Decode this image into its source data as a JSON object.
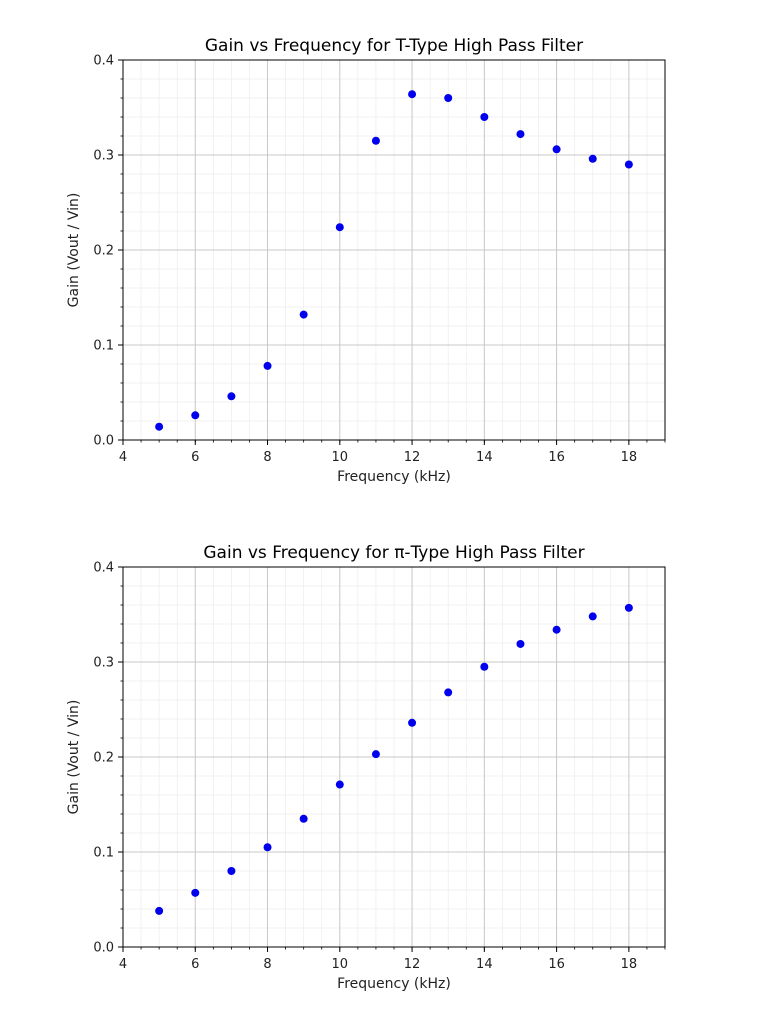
{
  "chart_data": [
    {
      "type": "scatter",
      "title": "Gain vs Frequency for T-Type High Pass Filter",
      "xlabel": "Frequency (kHz)",
      "ylabel": "Gain (Vout / Vin)",
      "xlim": [
        4,
        19
      ],
      "ylim": [
        0,
        0.4
      ],
      "xticks": [
        4,
        6,
        8,
        10,
        12,
        14,
        16,
        18
      ],
      "xtick_labels": [
        "4",
        "6",
        "8",
        "10",
        "12",
        "14",
        "16",
        "18"
      ],
      "yticks": [
        0,
        0.1,
        0.2,
        0.3,
        0.4
      ],
      "ytick_labels": [
        "0.0",
        "0.1",
        "0.2",
        "0.3",
        "0.4"
      ],
      "grid": true,
      "minor_grid": true,
      "marker_color": "#0000ee",
      "x": [
        5,
        6,
        7,
        8,
        9,
        10,
        11,
        12,
        13,
        14,
        15,
        16,
        17,
        18
      ],
      "y": [
        0.014,
        0.026,
        0.046,
        0.078,
        0.132,
        0.224,
        0.315,
        0.364,
        0.36,
        0.34,
        0.322,
        0.306,
        0.296,
        0.29
      ]
    },
    {
      "type": "scatter",
      "title": "Gain vs Frequency for π-Type High Pass Filter",
      "xlabel": "Frequency (kHz)",
      "ylabel": "Gain (Vout / Vin)",
      "xlim": [
        4,
        19
      ],
      "ylim": [
        0,
        0.4
      ],
      "xticks": [
        4,
        6,
        8,
        10,
        12,
        14,
        16,
        18
      ],
      "xtick_labels": [
        "4",
        "6",
        "8",
        "10",
        "12",
        "14",
        "16",
        "18"
      ],
      "yticks": [
        0,
        0.1,
        0.2,
        0.3,
        0.4
      ],
      "ytick_labels": [
        "0.0",
        "0.1",
        "0.2",
        "0.3",
        "0.4"
      ],
      "grid": true,
      "minor_grid": true,
      "marker_color": "#0000ee",
      "x": [
        5,
        6,
        7,
        8,
        9,
        10,
        11,
        12,
        13,
        14,
        15,
        16,
        17,
        18
      ],
      "y": [
        0.038,
        0.057,
        0.08,
        0.105,
        0.135,
        0.171,
        0.203,
        0.236,
        0.268,
        0.295,
        0.319,
        0.334,
        0.348,
        0.357
      ]
    }
  ]
}
